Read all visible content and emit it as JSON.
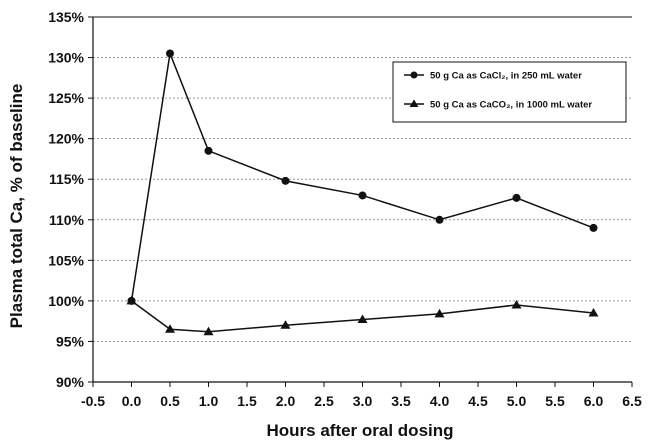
{
  "chart_data": {
    "type": "line",
    "title": "",
    "xlabel": "Hours after oral dosing",
    "ylabel": "Plasma total Ca, % of baseline",
    "xlim": [
      -0.5,
      6.5
    ],
    "ylim": [
      90,
      135
    ],
    "x_ticks": [
      "-0.5",
      "0.0",
      "0.5",
      "1.0",
      "1.5",
      "2.0",
      "2.5",
      "3.0",
      "3.5",
      "4.0",
      "4.5",
      "5.0",
      "5.5",
      "6.0",
      "6.5"
    ],
    "y_ticks": [
      "90%",
      "95%",
      "100%",
      "105%",
      "110%",
      "115%",
      "120%",
      "125%",
      "130%",
      "135%"
    ],
    "grid": "horizontal dotted",
    "legend_position": "top-right",
    "series": [
      {
        "name": "50 g Ca as CaCl₂, in 250 mL water",
        "marker": "circle",
        "x": [
          0.0,
          0.5,
          1.0,
          2.0,
          3.0,
          4.0,
          5.0,
          6.0
        ],
        "values": [
          100.0,
          130.5,
          118.5,
          114.8,
          113.0,
          110.0,
          112.7,
          109.0
        ]
      },
      {
        "name": "50 g Ca as CaCO₃, in 1000 mL water",
        "marker": "triangle",
        "x": [
          0.0,
          0.5,
          1.0,
          2.0,
          3.0,
          4.0,
          5.0,
          6.0
        ],
        "values": [
          100.0,
          96.5,
          96.2,
          97.0,
          97.7,
          98.4,
          99.5,
          98.5
        ]
      }
    ],
    "colors": {
      "line": "#111111",
      "grid": "#999999",
      "background": "#ffffff"
    }
  }
}
